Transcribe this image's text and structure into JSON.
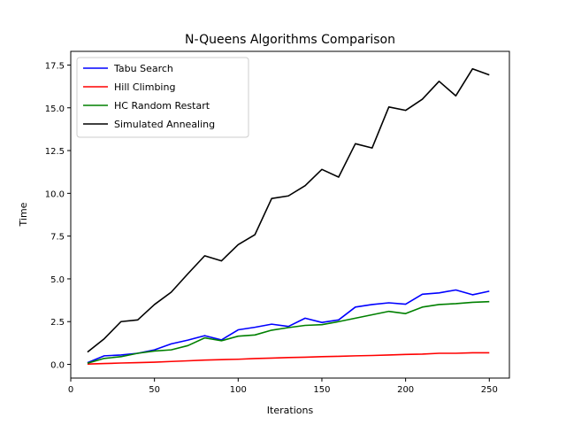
{
  "chart_data": {
    "type": "line",
    "title": "N-Queens Algorithms Comparison",
    "xlabel": "Iterations",
    "ylabel": "Time",
    "xlim": [
      0,
      262
    ],
    "ylim": [
      -0.8,
      18.3
    ],
    "xticks": [
      0,
      50,
      100,
      150,
      200,
      250
    ],
    "yticks": [
      0.0,
      2.5,
      5.0,
      7.5,
      10.0,
      12.5,
      15.0,
      17.5
    ],
    "ytick_labels": [
      "0.0",
      "2.5",
      "5.0",
      "7.5",
      "10.0",
      "12.5",
      "15.0",
      "17.5"
    ],
    "grid": false,
    "legend_position": "top-left",
    "x": [
      10,
      20,
      30,
      40,
      50,
      60,
      70,
      80,
      90,
      100,
      110,
      120,
      130,
      140,
      150,
      160,
      170,
      180,
      190,
      200,
      210,
      220,
      230,
      240,
      250
    ],
    "series": [
      {
        "name": "Tabu Search",
        "color": "#0000ff",
        "values": [
          0.1,
          0.5,
          0.55,
          0.65,
          0.85,
          1.2,
          1.42,
          1.68,
          1.43,
          2.02,
          2.17,
          2.35,
          2.22,
          2.7,
          2.45,
          2.6,
          3.35,
          3.5,
          3.6,
          3.52,
          4.1,
          4.18,
          4.35,
          4.07,
          4.28
        ]
      },
      {
        "name": "Hill Climbing",
        "color": "#ff0000",
        "values": [
          0.02,
          0.05,
          0.08,
          0.1,
          0.13,
          0.17,
          0.21,
          0.25,
          0.28,
          0.3,
          0.34,
          0.37,
          0.4,
          0.42,
          0.45,
          0.47,
          0.5,
          0.52,
          0.55,
          0.58,
          0.6,
          0.65,
          0.65,
          0.68,
          0.68
        ]
      },
      {
        "name": "HC Random Restart",
        "color": "#008000",
        "values": [
          0.07,
          0.35,
          0.45,
          0.65,
          0.78,
          0.85,
          1.1,
          1.55,
          1.38,
          1.65,
          1.72,
          2.0,
          2.15,
          2.28,
          2.32,
          2.5,
          2.7,
          2.9,
          3.1,
          2.97,
          3.35,
          3.5,
          3.55,
          3.63,
          3.67
        ]
      },
      {
        "name": "Simulated Annealing",
        "color": "#000000",
        "values": [
          0.72,
          1.5,
          2.5,
          2.6,
          3.5,
          4.22,
          5.3,
          6.35,
          6.05,
          7.0,
          7.58,
          9.7,
          9.85,
          10.45,
          11.4,
          10.95,
          12.9,
          12.65,
          15.05,
          14.85,
          15.5,
          16.55,
          15.7,
          17.28,
          16.92
        ]
      }
    ]
  }
}
